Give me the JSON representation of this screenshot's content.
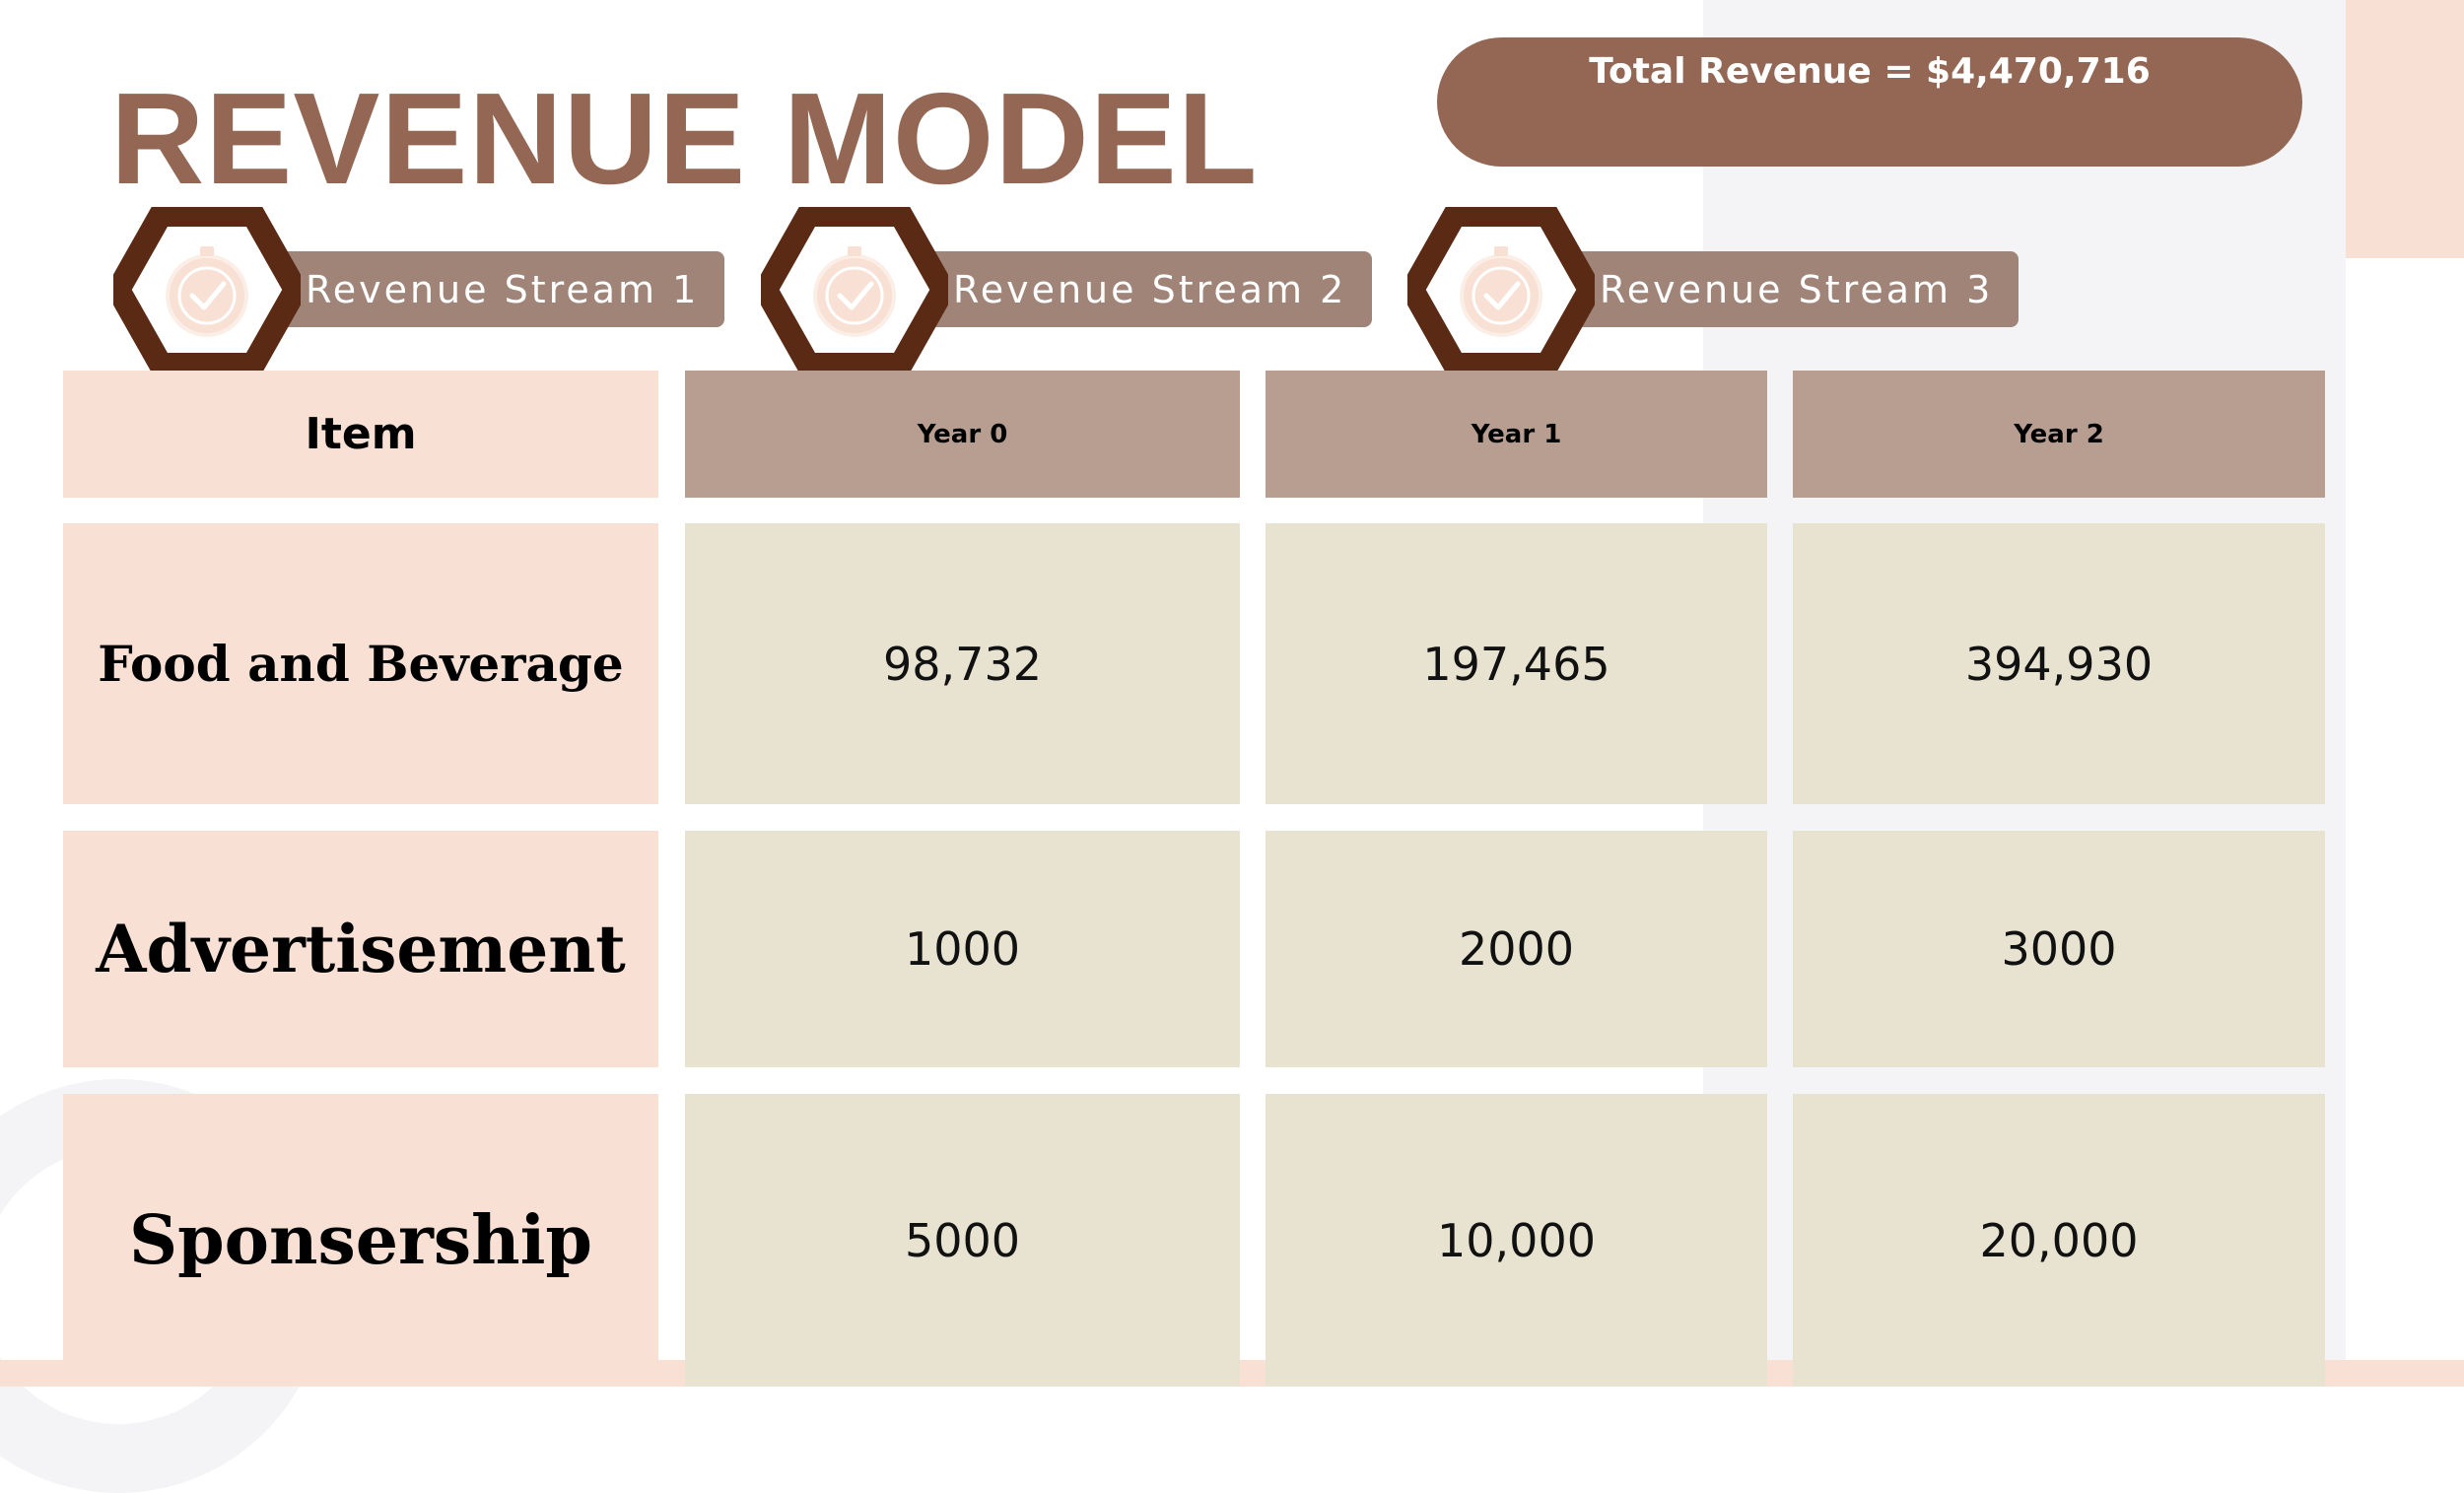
{
  "title": "REVENUE MODEL",
  "total_revenue": "Total Revenue = $4,470,716",
  "streams": [
    {
      "label": "Revenue Stream 1",
      "icon": "stopwatch-check-icon"
    },
    {
      "label": "Revenue Stream 2",
      "icon": "stopwatch-check-icon"
    },
    {
      "label": "Revenue Stream 3",
      "icon": "stopwatch-check-icon"
    }
  ],
  "table": {
    "header": {
      "item": "Item",
      "years": [
        "Year 0",
        "Year 1",
        "Year 2"
      ]
    },
    "rows": [
      {
        "label": "Food and Beverage",
        "values": [
          "98,732",
          "197,465",
          "394,930"
        ]
      },
      {
        "label": "Advertisement",
        "values": [
          "1000",
          "2000",
          "3000"
        ]
      },
      {
        "label": "Sponsership",
        "values": [
          "5000",
          "10,000",
          "20,000"
        ]
      }
    ]
  },
  "colors": {
    "brand_brown": "#936754",
    "hexagon": "#5a2a14",
    "peach": "#f8e1d4",
    "header_tan": "#b89e91",
    "value_beige": "#e8e3d1"
  }
}
